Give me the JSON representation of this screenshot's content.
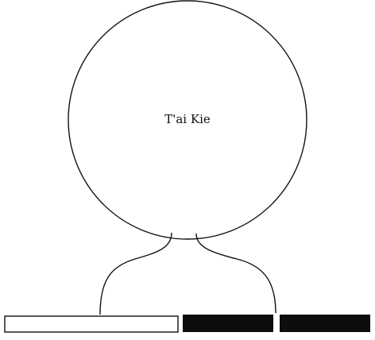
{
  "diagram": {
    "circle_label": "T'ai Kie",
    "lines": [
      {
        "name": "yang-line",
        "type": "unbroken",
        "style": "outlined"
      },
      {
        "name": "yin-line",
        "type": "broken",
        "style": "solid"
      }
    ],
    "colors": {
      "stroke": "#111111",
      "solid_fill": "#0d0d0d",
      "background": "#ffffff"
    }
  }
}
